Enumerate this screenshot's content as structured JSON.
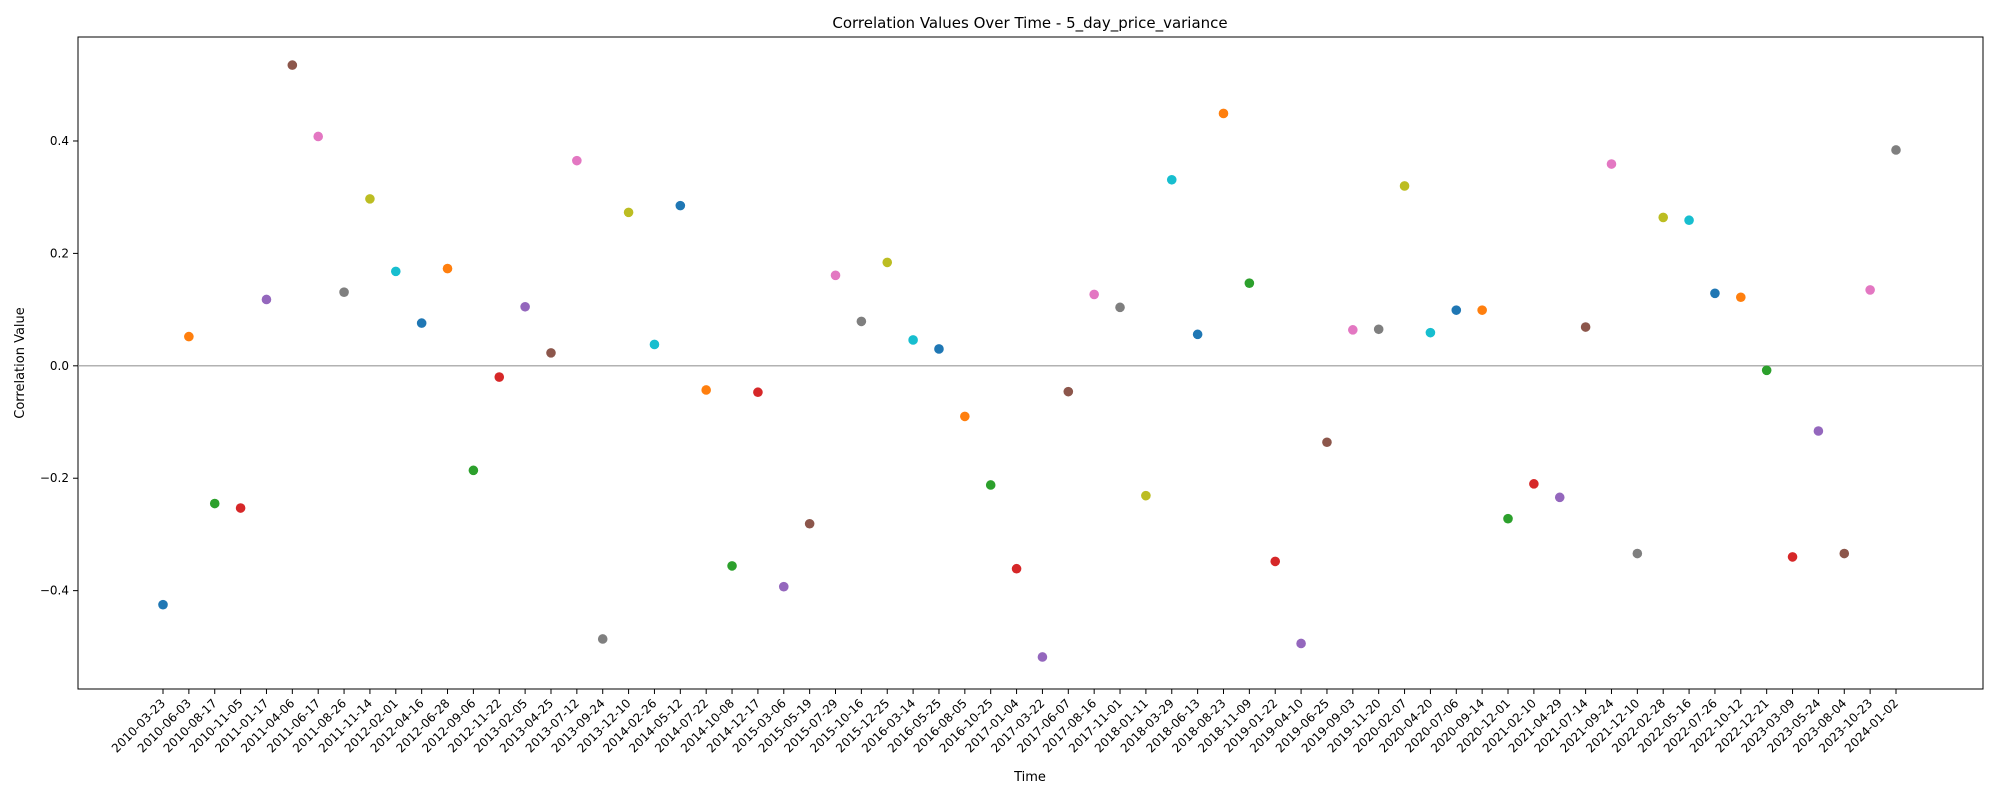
{
  "chart_data": {
    "type": "scatter",
    "title": "Correlation Values Over Time - 5_day_price_variance",
    "xlabel": "Time",
    "ylabel": "Correlation Value",
    "ylim": [
      -0.575,
      0.585
    ],
    "yticks": [
      -0.4,
      -0.2,
      0.0,
      0.2,
      0.4
    ],
    "ytick_labels": [
      "−0.4",
      "−0.2",
      "0.0",
      "0.2",
      "0.4"
    ],
    "reference_line": 0.0,
    "grid": false,
    "legend": "none",
    "colors": [
      "#1f77b4",
      "#ff7f0e",
      "#2ca02c",
      "#d62728",
      "#9467bd",
      "#8c564b",
      "#e377c2",
      "#7f7f7f",
      "#bcbd22",
      "#17becf"
    ],
    "x": [
      "2010-03-23",
      "2010-06-03",
      "2010-08-17",
      "2010-11-05",
      "2011-01-17",
      "2011-04-06",
      "2011-06-17",
      "2011-08-26",
      "2011-11-14",
      "2012-02-01",
      "2012-04-16",
      "2012-06-28",
      "2012-09-06",
      "2012-11-22",
      "2013-02-05",
      "2013-04-25",
      "2013-07-12",
      "2013-09-24",
      "2013-12-10",
      "2014-02-26",
      "2014-05-12",
      "2014-07-22",
      "2014-10-08",
      "2014-12-17",
      "2015-03-06",
      "2015-05-19",
      "2015-07-29",
      "2015-10-16",
      "2015-12-25",
      "2016-03-14",
      "2016-05-25",
      "2016-08-05",
      "2016-10-25",
      "2017-01-04",
      "2017-03-22",
      "2017-06-07",
      "2017-08-16",
      "2017-11-01",
      "2018-01-11",
      "2018-03-29",
      "2018-06-13",
      "2018-08-23",
      "2018-11-09",
      "2019-01-22",
      "2019-04-10",
      "2019-06-25",
      "2019-09-03",
      "2019-11-20",
      "2020-02-07",
      "2020-04-20",
      "2020-07-06",
      "2020-09-14",
      "2020-12-01",
      "2021-02-10",
      "2021-04-29",
      "2021-07-14",
      "2021-09-24",
      "2021-12-10",
      "2022-02-28",
      "2022-05-16",
      "2022-07-26",
      "2022-10-12",
      "2022-12-21",
      "2023-03-09",
      "2023-05-24",
      "2023-08-04",
      "2023-10-23",
      "2024-01-02"
    ],
    "y": [
      -0.425,
      0.052,
      -0.245,
      -0.253,
      0.118,
      0.535,
      0.408,
      0.131,
      0.297,
      0.168,
      0.076,
      0.173,
      -0.186,
      -0.02,
      0.105,
      0.023,
      0.365,
      -0.486,
      0.273,
      0.038,
      0.285,
      -0.043,
      -0.356,
      -0.047,
      -0.393,
      -0.281,
      0.161,
      0.079,
      0.184,
      0.046,
      0.03,
      -0.09,
      -0.212,
      -0.361,
      -0.518,
      -0.046,
      0.127,
      0.104,
      -0.231,
      0.331,
      0.056,
      0.449,
      0.147,
      -0.348,
      -0.494,
      -0.136,
      0.064,
      0.065,
      0.32,
      0.059,
      0.099,
      0.099,
      -0.272,
      -0.21,
      -0.234,
      0.069,
      0.359,
      -0.334,
      0.264,
      0.259,
      0.129,
      0.122,
      -0.008,
      -0.34,
      -0.116,
      -0.334,
      0.135,
      0.384
    ]
  }
}
